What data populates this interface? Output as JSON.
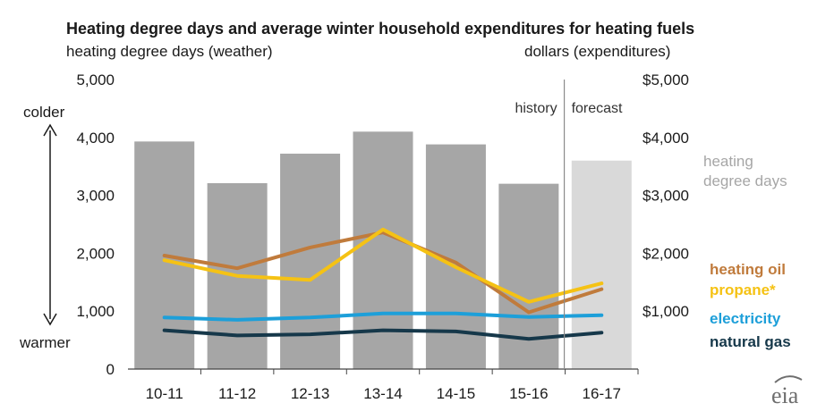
{
  "chart_data": {
    "type": "bar",
    "title": "Heating degree days and average winter household expenditures for heating fuels",
    "ylabel_left": "heating degree days (weather)",
    "ylabel_right": "dollars (expenditures)",
    "categories": [
      "10-11",
      "11-12",
      "12-13",
      "13-14",
      "14-15",
      "15-16",
      "16-17"
    ],
    "ylim": [
      0,
      5000
    ],
    "y_ticks_left": [
      "0",
      "1,000",
      "2,000",
      "3,000",
      "4,000",
      "5,000"
    ],
    "y_ticks_right": [
      "$1,000",
      "$2,000",
      "$3,000",
      "$4,000",
      "$5,000"
    ],
    "bars": {
      "name": "heating degree days",
      "values": [
        3930,
        3210,
        3720,
        4100,
        3880,
        3200,
        3600
      ],
      "colors": [
        "#a6a6a6",
        "#a6a6a6",
        "#a6a6a6",
        "#a6a6a6",
        "#a6a6a6",
        "#a6a6a6",
        "#d9d9d9"
      ]
    },
    "series": [
      {
        "name": "heating oil",
        "color": "#c07b3c",
        "values": [
          1960,
          1740,
          2100,
          2360,
          1840,
          980,
          1380
        ]
      },
      {
        "name": "propane*",
        "color": "#f5c214",
        "values": [
          1880,
          1610,
          1540,
          2410,
          1760,
          1160,
          1480
        ]
      },
      {
        "name": "electricity",
        "color": "#1d9fd9",
        "values": [
          890,
          850,
          890,
          960,
          960,
          900,
          930
        ]
      },
      {
        "name": "natural gas",
        "color": "#16384a",
        "values": [
          670,
          580,
          600,
          670,
          650,
          520,
          630
        ]
      }
    ],
    "annotations": {
      "history": "history",
      "forecast": "forecast",
      "colder": "colder",
      "warmer": "warmer",
      "hdd_label_line1": "heating",
      "hdd_label_line2": "degree days",
      "logo": "eia"
    }
  }
}
